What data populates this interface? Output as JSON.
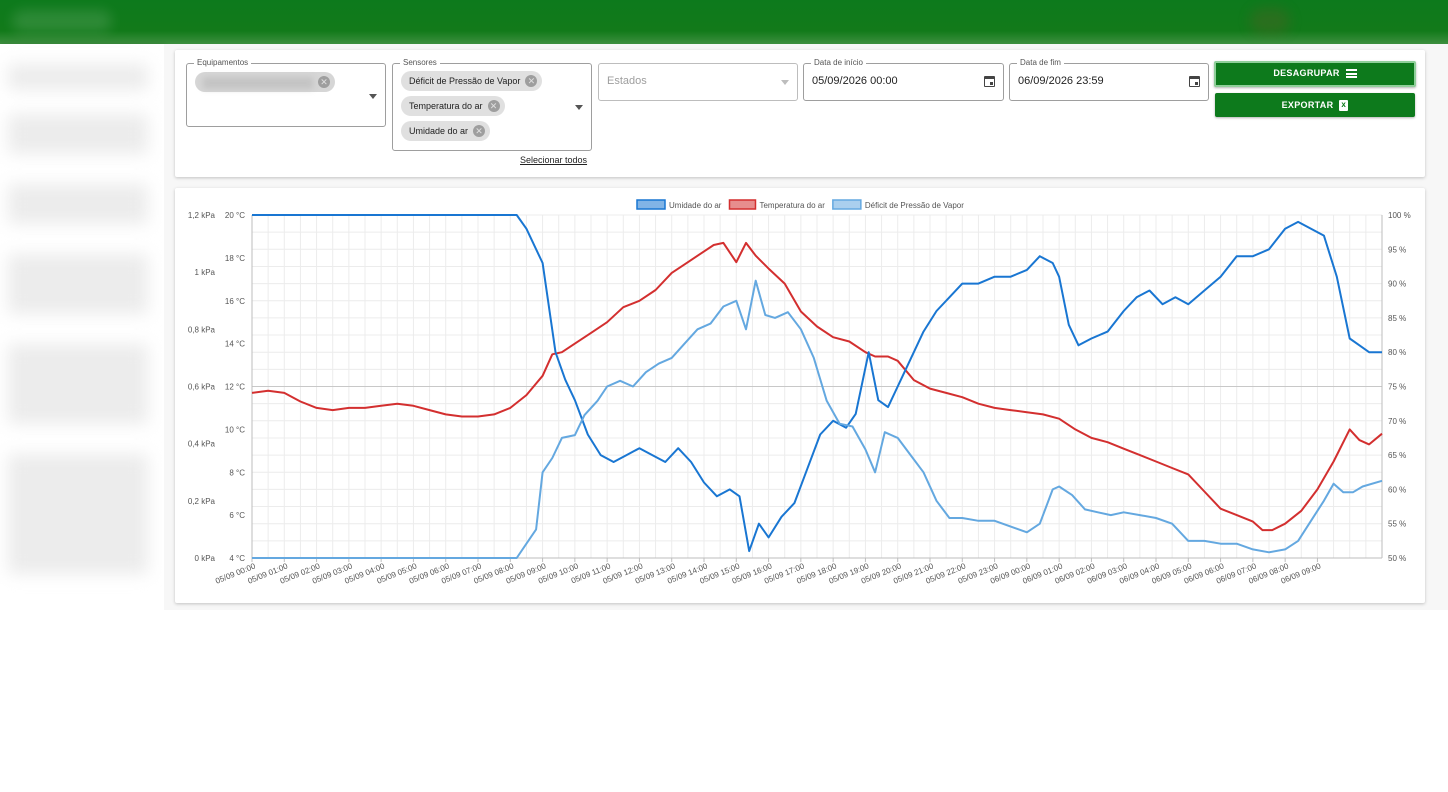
{
  "filters": {
    "equipment_label": "Equipamentos",
    "sensors_label": "Sensores",
    "sensor_chips": [
      "Déficit de Pressão de Vapor",
      "Temperatura do ar",
      "Umidade do ar"
    ],
    "select_all": "Selecionar todos",
    "states_placeholder": "Estados",
    "start_label": "Data de início",
    "start_value": "05/09/2026 00:00",
    "end_label": "Data de fim",
    "end_value": "06/09/2026 23:59",
    "ungroup_button": "DESAGRUPAR",
    "export_button": "EXPORTAR"
  },
  "chart_data": {
    "type": "line",
    "legend_position": "top-center",
    "grid": true,
    "series": [
      {
        "name": "Temperatura do ar",
        "axis": "temperature",
        "color": "#d32f2f",
        "points": [
          [
            0,
            11.7
          ],
          [
            0.5,
            11.8
          ],
          [
            1,
            11.7
          ],
          [
            1.5,
            11.3
          ],
          [
            2,
            11.0
          ],
          [
            2.5,
            10.9
          ],
          [
            3,
            11.0
          ],
          [
            3.5,
            11.0
          ],
          [
            4,
            11.1
          ],
          [
            4.5,
            11.2
          ],
          [
            5,
            11.1
          ],
          [
            5.5,
            10.9
          ],
          [
            6,
            10.7
          ],
          [
            6.5,
            10.6
          ],
          [
            7,
            10.6
          ],
          [
            7.5,
            10.7
          ],
          [
            8,
            11.0
          ],
          [
            8.5,
            11.6
          ],
          [
            9,
            12.5
          ],
          [
            9.3,
            13.5
          ],
          [
            9.6,
            13.6
          ],
          [
            10,
            14.0
          ],
          [
            10.5,
            14.5
          ],
          [
            11,
            15.0
          ],
          [
            11.5,
            15.7
          ],
          [
            12,
            16.0
          ],
          [
            12.5,
            16.5
          ],
          [
            13,
            17.3
          ],
          [
            13.5,
            17.8
          ],
          [
            14,
            18.3
          ],
          [
            14.3,
            18.6
          ],
          [
            14.6,
            18.7
          ],
          [
            15,
            17.8
          ],
          [
            15.3,
            18.7
          ],
          [
            15.6,
            18.1
          ],
          [
            16,
            17.5
          ],
          [
            16.5,
            16.8
          ],
          [
            17,
            15.5
          ],
          [
            17.5,
            14.8
          ],
          [
            18,
            14.3
          ],
          [
            18.5,
            14.1
          ],
          [
            19,
            13.6
          ],
          [
            19.3,
            13.4
          ],
          [
            19.7,
            13.4
          ],
          [
            20,
            13.2
          ],
          [
            20.5,
            12.3
          ],
          [
            21,
            11.9
          ],
          [
            21.5,
            11.7
          ],
          [
            22,
            11.5
          ],
          [
            22.5,
            11.2
          ],
          [
            23,
            11.0
          ],
          [
            23.5,
            10.9
          ],
          [
            24,
            10.8
          ],
          [
            24.5,
            10.7
          ],
          [
            25,
            10.5
          ],
          [
            25.5,
            10.0
          ],
          [
            26,
            9.6
          ],
          [
            26.5,
            9.4
          ],
          [
            27,
            9.1
          ],
          [
            27.5,
            8.8
          ],
          [
            28,
            8.5
          ],
          [
            28.5,
            8.2
          ],
          [
            29,
            7.9
          ],
          [
            29.5,
            7.1
          ],
          [
            30,
            6.3
          ],
          [
            30.5,
            6.0
          ],
          [
            31,
            5.7
          ],
          [
            31.3,
            5.3
          ],
          [
            31.6,
            5.3
          ],
          [
            32,
            5.6
          ],
          [
            32.5,
            6.2
          ],
          [
            33,
            7.2
          ],
          [
            33.5,
            8.5
          ],
          [
            34,
            10.0
          ],
          [
            34.3,
            9.5
          ],
          [
            34.6,
            9.3
          ],
          [
            35,
            9.8
          ]
        ]
      },
      {
        "name": "Umidade do ar",
        "axis": "humidity",
        "color": "#1976d2",
        "points": [
          [
            0,
            100
          ],
          [
            4,
            100
          ],
          [
            8.2,
            100
          ],
          [
            8.5,
            98
          ],
          [
            9,
            93
          ],
          [
            9.4,
            80
          ],
          [
            9.7,
            76
          ],
          [
            10,
            73
          ],
          [
            10.4,
            68
          ],
          [
            10.8,
            65
          ],
          [
            11.2,
            64
          ],
          [
            11.6,
            65
          ],
          [
            12,
            66
          ],
          [
            12.4,
            65
          ],
          [
            12.8,
            64
          ],
          [
            13.2,
            66
          ],
          [
            13.6,
            64
          ],
          [
            14,
            61
          ],
          [
            14.4,
            59
          ],
          [
            14.8,
            60
          ],
          [
            15.1,
            59
          ],
          [
            15.4,
            51
          ],
          [
            15.7,
            55
          ],
          [
            16,
            53
          ],
          [
            16.4,
            56
          ],
          [
            16.8,
            58
          ],
          [
            17.2,
            63
          ],
          [
            17.6,
            68
          ],
          [
            18,
            70
          ],
          [
            18.4,
            69
          ],
          [
            18.7,
            71
          ],
          [
            19.1,
            80
          ],
          [
            19.4,
            73
          ],
          [
            19.7,
            72
          ],
          [
            20,
            75
          ],
          [
            20.4,
            79
          ],
          [
            20.8,
            83
          ],
          [
            21.2,
            86
          ],
          [
            21.6,
            88
          ],
          [
            22,
            90
          ],
          [
            22.5,
            90
          ],
          [
            23,
            91
          ],
          [
            23.5,
            91
          ],
          [
            24,
            92
          ],
          [
            24.4,
            94
          ],
          [
            24.8,
            93
          ],
          [
            25,
            91
          ],
          [
            25.3,
            84
          ],
          [
            25.6,
            81
          ],
          [
            26,
            82
          ],
          [
            26.5,
            83
          ],
          [
            27,
            86
          ],
          [
            27.4,
            88
          ],
          [
            27.8,
            89
          ],
          [
            28.2,
            87
          ],
          [
            28.6,
            88
          ],
          [
            29,
            87
          ],
          [
            29.5,
            89
          ],
          [
            30,
            91
          ],
          [
            30.5,
            94
          ],
          [
            31,
            94
          ],
          [
            31.5,
            95
          ],
          [
            32,
            98
          ],
          [
            32.4,
            99
          ],
          [
            32.8,
            98
          ],
          [
            33.2,
            97
          ],
          [
            33.6,
            91
          ],
          [
            34,
            82
          ],
          [
            34.3,
            81
          ],
          [
            34.6,
            80
          ],
          [
            35,
            80
          ]
        ]
      },
      {
        "name": "Déficit de Pressão de Vapor",
        "axis": "pressure",
        "color": "#64a8e0",
        "points": [
          [
            0,
            0
          ],
          [
            4,
            0
          ],
          [
            8.2,
            0
          ],
          [
            8.5,
            0.05
          ],
          [
            8.8,
            0.1
          ],
          [
            9,
            0.3
          ],
          [
            9.3,
            0.35
          ],
          [
            9.6,
            0.42
          ],
          [
            10,
            0.43
          ],
          [
            10.3,
            0.5
          ],
          [
            10.7,
            0.55
          ],
          [
            11,
            0.6
          ],
          [
            11.4,
            0.62
          ],
          [
            11.8,
            0.6
          ],
          [
            12.2,
            0.65
          ],
          [
            12.6,
            0.68
          ],
          [
            13,
            0.7
          ],
          [
            13.4,
            0.75
          ],
          [
            13.8,
            0.8
          ],
          [
            14.2,
            0.82
          ],
          [
            14.6,
            0.88
          ],
          [
            15,
            0.9
          ],
          [
            15.3,
            0.8
          ],
          [
            15.6,
            0.97
          ],
          [
            15.9,
            0.85
          ],
          [
            16.2,
            0.84
          ],
          [
            16.6,
            0.86
          ],
          [
            17,
            0.8
          ],
          [
            17.4,
            0.7
          ],
          [
            17.8,
            0.55
          ],
          [
            18.2,
            0.47
          ],
          [
            18.6,
            0.46
          ],
          [
            19,
            0.38
          ],
          [
            19.3,
            0.3
          ],
          [
            19.6,
            0.44
          ],
          [
            20,
            0.42
          ],
          [
            20.4,
            0.36
          ],
          [
            20.8,
            0.3
          ],
          [
            21.2,
            0.2
          ],
          [
            21.6,
            0.14
          ],
          [
            22,
            0.14
          ],
          [
            22.5,
            0.13
          ],
          [
            23,
            0.13
          ],
          [
            23.5,
            0.11
          ],
          [
            24,
            0.09
          ],
          [
            24.4,
            0.12
          ],
          [
            24.8,
            0.24
          ],
          [
            25,
            0.25
          ],
          [
            25.4,
            0.22
          ],
          [
            25.8,
            0.17
          ],
          [
            26.2,
            0.16
          ],
          [
            26.6,
            0.15
          ],
          [
            27,
            0.16
          ],
          [
            27.5,
            0.15
          ],
          [
            28,
            0.14
          ],
          [
            28.5,
            0.12
          ],
          [
            29,
            0.06
          ],
          [
            29.5,
            0.06
          ],
          [
            30,
            0.05
          ],
          [
            30.5,
            0.05
          ],
          [
            31,
            0.03
          ],
          [
            31.5,
            0.02
          ],
          [
            32,
            0.03
          ],
          [
            32.4,
            0.06
          ],
          [
            32.8,
            0.13
          ],
          [
            33.2,
            0.2
          ],
          [
            33.5,
            0.26
          ],
          [
            33.8,
            0.23
          ],
          [
            34.1,
            0.23
          ],
          [
            34.4,
            0.25
          ],
          [
            35,
            0.27
          ]
        ]
      }
    ],
    "axes": {
      "temperature": {
        "min": 4,
        "max": 20,
        "ticks": [
          "4 °C",
          "6 °C",
          "8 °C",
          "10 °C",
          "12 °C",
          "14 °C",
          "16 °C",
          "18 °C",
          "20 °C"
        ]
      },
      "pressure": {
        "min": 0,
        "max": 1.2,
        "ticks": [
          "0 kPa",
          "0,2 kPa",
          "0,4 kPa",
          "0,6 kPa",
          "0,8 kPa",
          "1 kPa",
          "1,2 kPa"
        ]
      },
      "humidity": {
        "min": 50,
        "max": 100,
        "ticks": [
          "50 %",
          "55 %",
          "60 %",
          "65 %",
          "70 %",
          "75 %",
          "80 %",
          "85 %",
          "90 %",
          "95 %",
          "100 %"
        ]
      }
    },
    "x_range_hours": [
      0,
      35
    ],
    "x_tick_labels": [
      "05/09 00:00",
      "05/09 01:00",
      "05/09 02:00",
      "05/09 03:00",
      "05/09 04:00",
      "05/09 05:00",
      "05/09 06:00",
      "05/09 07:00",
      "05/09 08:00",
      "05/09 09:00",
      "05/09 10:00",
      "05/09 11:00",
      "05/09 12:00",
      "05/09 13:00",
      "05/09 14:00",
      "05/09 15:00",
      "05/09 16:00",
      "05/09 17:00",
      "05/09 18:00",
      "05/09 19:00",
      "05/09 20:00",
      "05/09 21:00",
      "05/09 22:00",
      "05/09 23:00",
      "06/09 00:00",
      "06/09 01:00",
      "06/09 02:00",
      "06/09 03:00",
      "06/09 04:00",
      "06/09 05:00",
      "06/09 06:00",
      "06/09 07:00",
      "06/09 08:00",
      "06/09 09:00"
    ]
  }
}
